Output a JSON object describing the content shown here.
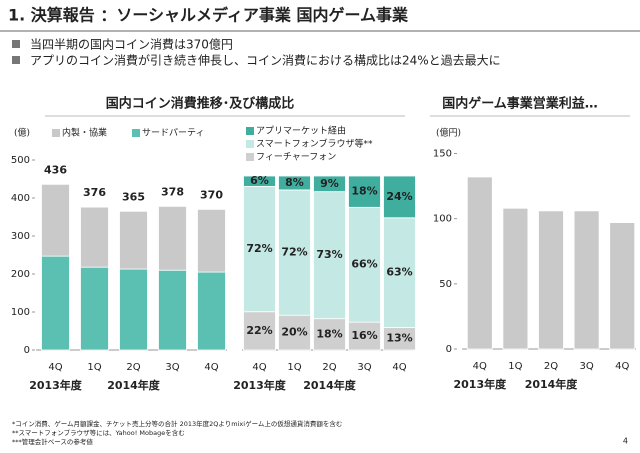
{
  "slide": {
    "title": "1. 決算報告 ：ソーシャルメディア事業 国内ゲーム事業",
    "bullets": [
      "当四半期の国内コイン消費は370億円",
      "アプリのコイン消費が引き続き伸長し、コイン消費における構成比は24%と過去最大に"
    ],
    "footnotes": [
      "*コイン消費、ゲーム月額課金、チケット売上分等の合計 2013年度2Qよりmixiゲーム上の仮想通貨消費額を含む",
      "**スマートフォンブラウザ等には、Yahoo! Mobageを含む",
      "***管理会計ベースの参考値"
    ],
    "page_number": 4
  },
  "chart_data": [
    {
      "type": "bar",
      "stacked": true,
      "title": "国内コイン消費推移･及び構成比",
      "unit_label": "(億)",
      "categories": [
        "4Q",
        "1Q",
        "2Q",
        "3Q",
        "4Q"
      ],
      "groups": [
        "2013年度",
        "2014年度"
      ],
      "series": [
        {
          "name": "サードパーティ",
          "color": "#5bbfb1",
          "values": [
            247,
            218,
            213,
            210,
            205
          ]
        },
        {
          "name": "内製・協業",
          "color": "#c9c9c9",
          "values": [
            189,
            158,
            152,
            168,
            165
          ]
        }
      ],
      "totals": [
        436,
        376,
        365,
        378,
        370
      ],
      "ylim": [
        0,
        500
      ],
      "yticks": [
        0,
        100,
        200,
        300,
        400,
        500
      ],
      "legend": "top"
    },
    {
      "type": "bar",
      "stacked": true,
      "categories": [
        "4Q",
        "1Q",
        "2Q",
        "3Q",
        "4Q"
      ],
      "groups": [
        "2013年度",
        "2014年度"
      ],
      "series": [
        {
          "name": "フィーチャーフォン",
          "color": "#cfcfcf",
          "values": [
            22,
            20,
            18,
            16,
            13
          ],
          "value_labels": [
            "22%",
            "20%",
            "18%",
            "16%",
            "13%"
          ]
        },
        {
          "name": "スマートフォンブラウザ等**",
          "color": "#c4e8e3",
          "values": [
            72,
            72,
            73,
            66,
            63
          ],
          "value_labels": [
            "72%",
            "72%",
            "73%",
            "66%",
            "63%"
          ]
        },
        {
          "name": "アプリマーケット経由",
          "color": "#3fae9f",
          "values": [
            6,
            8,
            9,
            18,
            24
          ],
          "value_labels": [
            "6%",
            "8%",
            "9%",
            "18%",
            "24%"
          ]
        }
      ],
      "ylim": [
        0,
        100
      ],
      "legend": "top"
    },
    {
      "type": "bar",
      "title": "国内ゲーム事業営業利益…",
      "unit_label": "(億円)",
      "categories": [
        "4Q",
        "1Q",
        "2Q",
        "3Q",
        "4Q"
      ],
      "groups": [
        "2013年度",
        "2014年度"
      ],
      "series": [
        {
          "color": "#c9c9c9",
          "values": [
            132,
            108,
            106,
            106,
            97
          ]
        }
      ],
      "ylim": [
        0,
        155
      ],
      "yticks": [
        0,
        50,
        100,
        150
      ]
    }
  ]
}
